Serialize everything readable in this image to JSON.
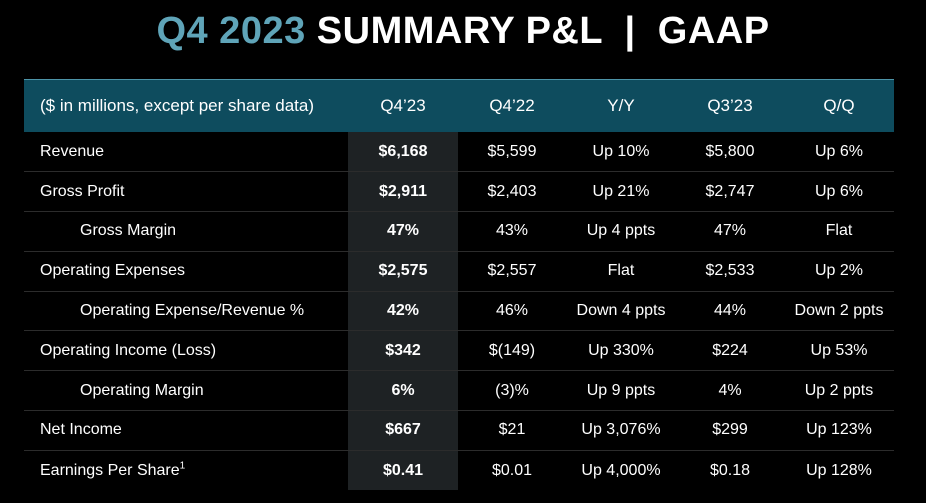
{
  "title": {
    "accent": "Q4 2023",
    "main": "SUMMARY P&L  |  GAAP"
  },
  "table": {
    "headers": [
      "($ in millions, except per share data)",
      "Q4’23",
      "Q4’22",
      "Y/Y",
      "Q3’23",
      "Q/Q"
    ],
    "rows": [
      {
        "label": "Revenue",
        "sup": "",
        "indent": false,
        "cells": [
          "$6,168",
          "$5,599",
          "Up 10%",
          "$5,800",
          "Up 6%"
        ]
      },
      {
        "label": "Gross Profit",
        "sup": "",
        "indent": false,
        "cells": [
          "$2,911",
          "$2,403",
          "Up 21%",
          "$2,747",
          "Up 6%"
        ]
      },
      {
        "label": "Gross Margin",
        "sup": "",
        "indent": true,
        "cells": [
          "47%",
          "43%",
          "Up 4 ppts",
          "47%",
          "Flat"
        ]
      },
      {
        "label": "Operating Expenses",
        "sup": "",
        "indent": false,
        "cells": [
          "$2,575",
          "$2,557",
          "Flat",
          "$2,533",
          "Up 2%"
        ]
      },
      {
        "label": "Operating Expense/Revenue %",
        "sup": "",
        "indent": true,
        "cells": [
          "42%",
          "46%",
          "Down 4 ppts",
          "44%",
          "Down 2 ppts"
        ]
      },
      {
        "label": "Operating Income (Loss)",
        "sup": "",
        "indent": false,
        "cells": [
          "$342",
          "$(149)",
          "Up 330%",
          "$224",
          "Up 53%"
        ]
      },
      {
        "label": "Operating Margin",
        "sup": "",
        "indent": true,
        "cells": [
          "6%",
          "(3)%",
          "Up 9 ppts",
          "4%",
          "Up 2 ppts"
        ]
      },
      {
        "label": "Net Income",
        "sup": "",
        "indent": false,
        "cells": [
          "$667",
          "$21",
          "Up 3,076%",
          "$299",
          "Up 123%"
        ]
      },
      {
        "label": "Earnings Per Share",
        "sup": "1",
        "indent": false,
        "cells": [
          "$0.41",
          "$0.01",
          "Up 4,000%",
          "$0.18",
          "Up 128%"
        ]
      }
    ]
  },
  "colors": {
    "background": "#000000",
    "title_accent": "#5fa4b8",
    "header_fill": "#0e4c5e",
    "highlight_column": "#1e2224"
  }
}
